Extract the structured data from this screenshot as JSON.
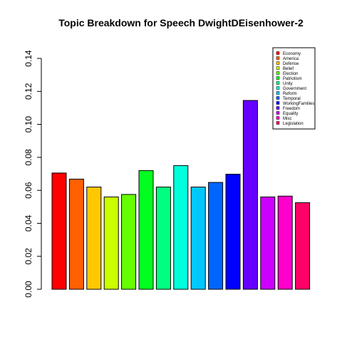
{
  "chart_data": {
    "type": "bar",
    "title": "Topic Breakdown for Speech DwightDEisenhower-2",
    "xlabel": "",
    "ylabel": "",
    "ylim": [
      0,
      0.14
    ],
    "yticks": [
      "0.00",
      "0.02",
      "0.04",
      "0.06",
      "0.08",
      "0.10",
      "0.12",
      "0.14"
    ],
    "ytick_values": [
      0,
      0.02,
      0.04,
      0.06,
      0.08,
      0.1,
      0.12,
      0.14
    ],
    "grid": false,
    "legend_position": "top-right",
    "categories": [
      "Economy",
      "America",
      "Defense",
      "Belief",
      "Election",
      "Patriotism",
      "Unity",
      "Government",
      "Reform",
      "Temporal",
      "WorkingFamilies",
      "Freedom",
      "Equality",
      "Misc",
      "Legislation"
    ],
    "values": [
      0.0705,
      0.0668,
      0.062,
      0.056,
      0.0575,
      0.072,
      0.062,
      0.075,
      0.062,
      0.0648,
      0.0698,
      0.1145,
      0.056,
      0.0565,
      0.0525
    ],
    "colors": [
      "#FF0000",
      "#FF6000",
      "#FFC800",
      "#CCFF00",
      "#66FF00",
      "#00FF20",
      "#00FF80",
      "#00FFDD",
      "#00C8FF",
      "#0066FF",
      "#0000FF",
      "#6600FF",
      "#CC00FF",
      "#FF00CC",
      "#FF0066"
    ]
  }
}
